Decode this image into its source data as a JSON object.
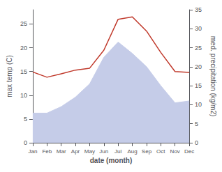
{
  "chart_data": {
    "type": "line",
    "xlabel": "date (month)",
    "ylabel": "max temp (C)",
    "y2label": "med. precipitation (kg/m2)",
    "categories": [
      "Jan",
      "Feb",
      "Mar",
      "Apr",
      "May",
      "Jun",
      "Jul",
      "Aug",
      "Sep",
      "Oct",
      "Nov",
      "Dec"
    ],
    "series": [
      {
        "type": "area",
        "axis": "y2",
        "color": "#c5cce8",
        "values": [
          7.8,
          7.8,
          9.5,
          12.0,
          15.5,
          22.5,
          26.5,
          23.5,
          20.0,
          15.0,
          10.5,
          11.0
        ]
      },
      {
        "type": "line",
        "color": "#c0392b",
        "values": [
          14.9,
          13.8,
          14.5,
          15.3,
          15.7,
          19.5,
          26.0,
          26.5,
          23.5,
          19.0,
          15.0,
          14.8
        ]
      }
    ],
    "ylim": [
      0,
      28
    ],
    "yticks": [
      0,
      5,
      10,
      15,
      20,
      25
    ],
    "y2lim": [
      0,
      35
    ],
    "y2ticks": [
      0,
      5,
      10,
      15,
      20,
      25,
      30,
      35
    ],
    "grid": false
  }
}
